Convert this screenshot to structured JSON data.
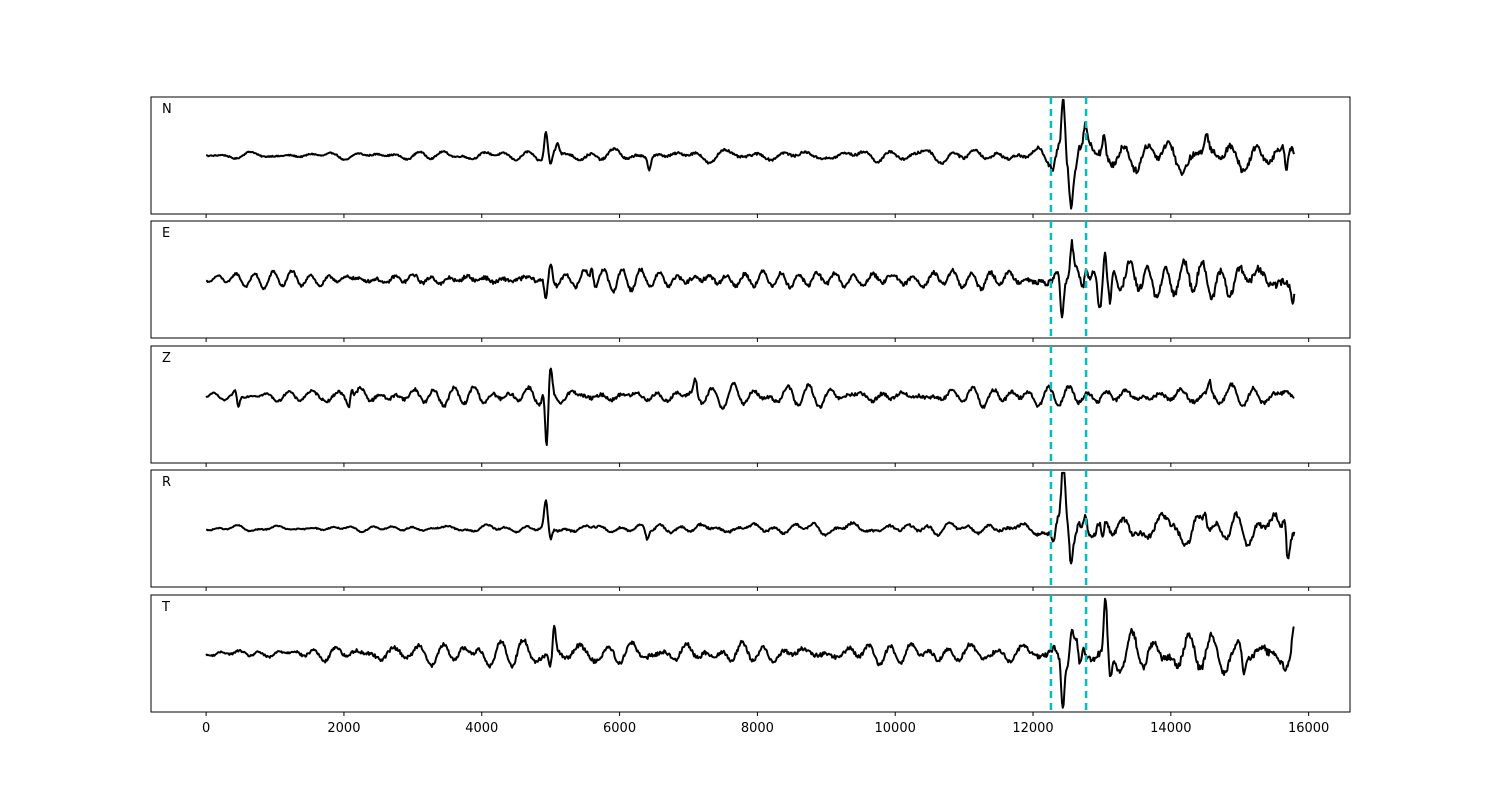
{
  "chart_data": {
    "type": "line",
    "xlim": [
      -800,
      16600
    ],
    "x_ticks": [
      0,
      2000,
      4000,
      6000,
      8000,
      10000,
      12000,
      14000,
      16000
    ],
    "x_tick_labels": [
      "0",
      "2000",
      "4000",
      "6000",
      "8000",
      "10000",
      "12000",
      "14000",
      "16000"
    ],
    "x_range": [
      0,
      15800
    ],
    "ylim": [
      -1,
      1
    ],
    "grid": false,
    "legend": "none",
    "trace_color": "#000000",
    "marker_color": "#00bfbf",
    "vertical_markers": [
      12260,
      12770
    ],
    "panels": [
      {
        "label": "N",
        "series": [
          {
            "color": "#000000",
            "baseline": 0.0,
            "noise_amplitude": [
              [
                0,
                0.04
              ],
              [
                4600,
                0.06
              ],
              [
                5200,
                0.08
              ],
              [
                12000,
                0.09
              ],
              [
                12300,
                0.22
              ],
              [
                15800,
                0.22
              ]
            ],
            "spikes": [
              [
                4930,
                0.45
              ],
              [
                5000,
                -0.22
              ],
              [
                5100,
                0.18
              ],
              [
                6430,
                -0.22
              ],
              [
                12300,
                -0.18
              ],
              [
                12440,
                1.0
              ],
              [
                12550,
                -0.55
              ],
              [
                12660,
                0.18
              ],
              [
                12760,
                0.3
              ],
              [
                13030,
                0.35
              ],
              [
                14520,
                0.32
              ],
              [
                15680,
                -0.4
              ]
            ]
          }
        ]
      },
      {
        "label": "E",
        "series": [
          {
            "color": "#000000",
            "baseline": 0.0,
            "noise_amplitude": [
              [
                0,
                0.05
              ],
              [
                700,
                0.09
              ],
              [
                4700,
                0.14
              ],
              [
                12000,
                0.14
              ],
              [
                12300,
                0.22
              ],
              [
                15800,
                0.25
              ]
            ],
            "spikes": [
              [
                4930,
                -0.4
              ],
              [
                5000,
                0.28
              ],
              [
                5600,
                0.28
              ],
              [
                12240,
                0.0
              ],
              [
                12420,
                -0.72
              ],
              [
                12560,
                0.55
              ],
              [
                12770,
                0.35
              ],
              [
                12960,
                -0.4
              ],
              [
                13040,
                0.72
              ],
              [
                13120,
                -0.55
              ],
              [
                15770,
                -0.22
              ]
            ]
          }
        ]
      },
      {
        "label": "Z",
        "series": [
          {
            "color": "#000000",
            "baseline": 0.15,
            "noise_amplitude": [
              [
                0,
                0.04
              ],
              [
                1400,
                0.08
              ],
              [
                2300,
                0.12
              ],
              [
                6500,
                0.12
              ],
              [
                15800,
                0.13
              ]
            ],
            "spikes": [
              [
                440,
                0.18
              ],
              [
                460,
                -0.32
              ],
              [
                2100,
                0.55
              ],
              [
                2090,
                -0.45
              ],
              [
                4900,
                0.18
              ],
              [
                4940,
                -1.0
              ],
              [
                5000,
                0.42
              ],
              [
                7100,
                0.28
              ],
              [
                14560,
                0.22
              ],
              [
                15800,
                0.08
              ]
            ]
          }
        ]
      },
      {
        "label": "R",
        "series": [
          {
            "color": "#000000",
            "baseline": 0.0,
            "noise_amplitude": [
              [
                0,
                0.03
              ],
              [
                4600,
                0.05
              ],
              [
                5200,
                0.07
              ],
              [
                12000,
                0.09
              ],
              [
                12300,
                0.18
              ],
              [
                15800,
                0.22
              ]
            ],
            "spikes": [
              [
                4930,
                0.45
              ],
              [
                5000,
                -0.22
              ],
              [
                6400,
                -0.18
              ],
              [
                12300,
                -0.18
              ],
              [
                12440,
                1.0
              ],
              [
                12550,
                -0.55
              ],
              [
                12660,
                0.22
              ],
              [
                12760,
                0.3
              ],
              [
                13010,
                -0.32
              ],
              [
                14500,
                0.28
              ],
              [
                15650,
                0.35
              ],
              [
                15700,
                -0.4
              ]
            ]
          }
        ]
      },
      {
        "label": "T",
        "series": [
          {
            "color": "#000000",
            "baseline": 0.0,
            "noise_amplitude": [
              [
                0,
                0.05
              ],
              [
                700,
                0.08
              ],
              [
                2400,
                0.12
              ],
              [
                4700,
                0.15
              ],
              [
                12000,
                0.14
              ],
              [
                12300,
                0.22
              ],
              [
                15800,
                0.25
              ]
            ],
            "spikes": [
              [
                5050,
                0.45
              ],
              [
                5000,
                -0.28
              ],
              [
                12430,
                -0.8
              ],
              [
                12560,
                0.42
              ],
              [
                12680,
                -0.45
              ],
              [
                13050,
                0.9
              ],
              [
                13120,
                -0.55
              ],
              [
                15060,
                -0.38
              ],
              [
                15780,
                0.32
              ]
            ]
          }
        ]
      }
    ]
  }
}
